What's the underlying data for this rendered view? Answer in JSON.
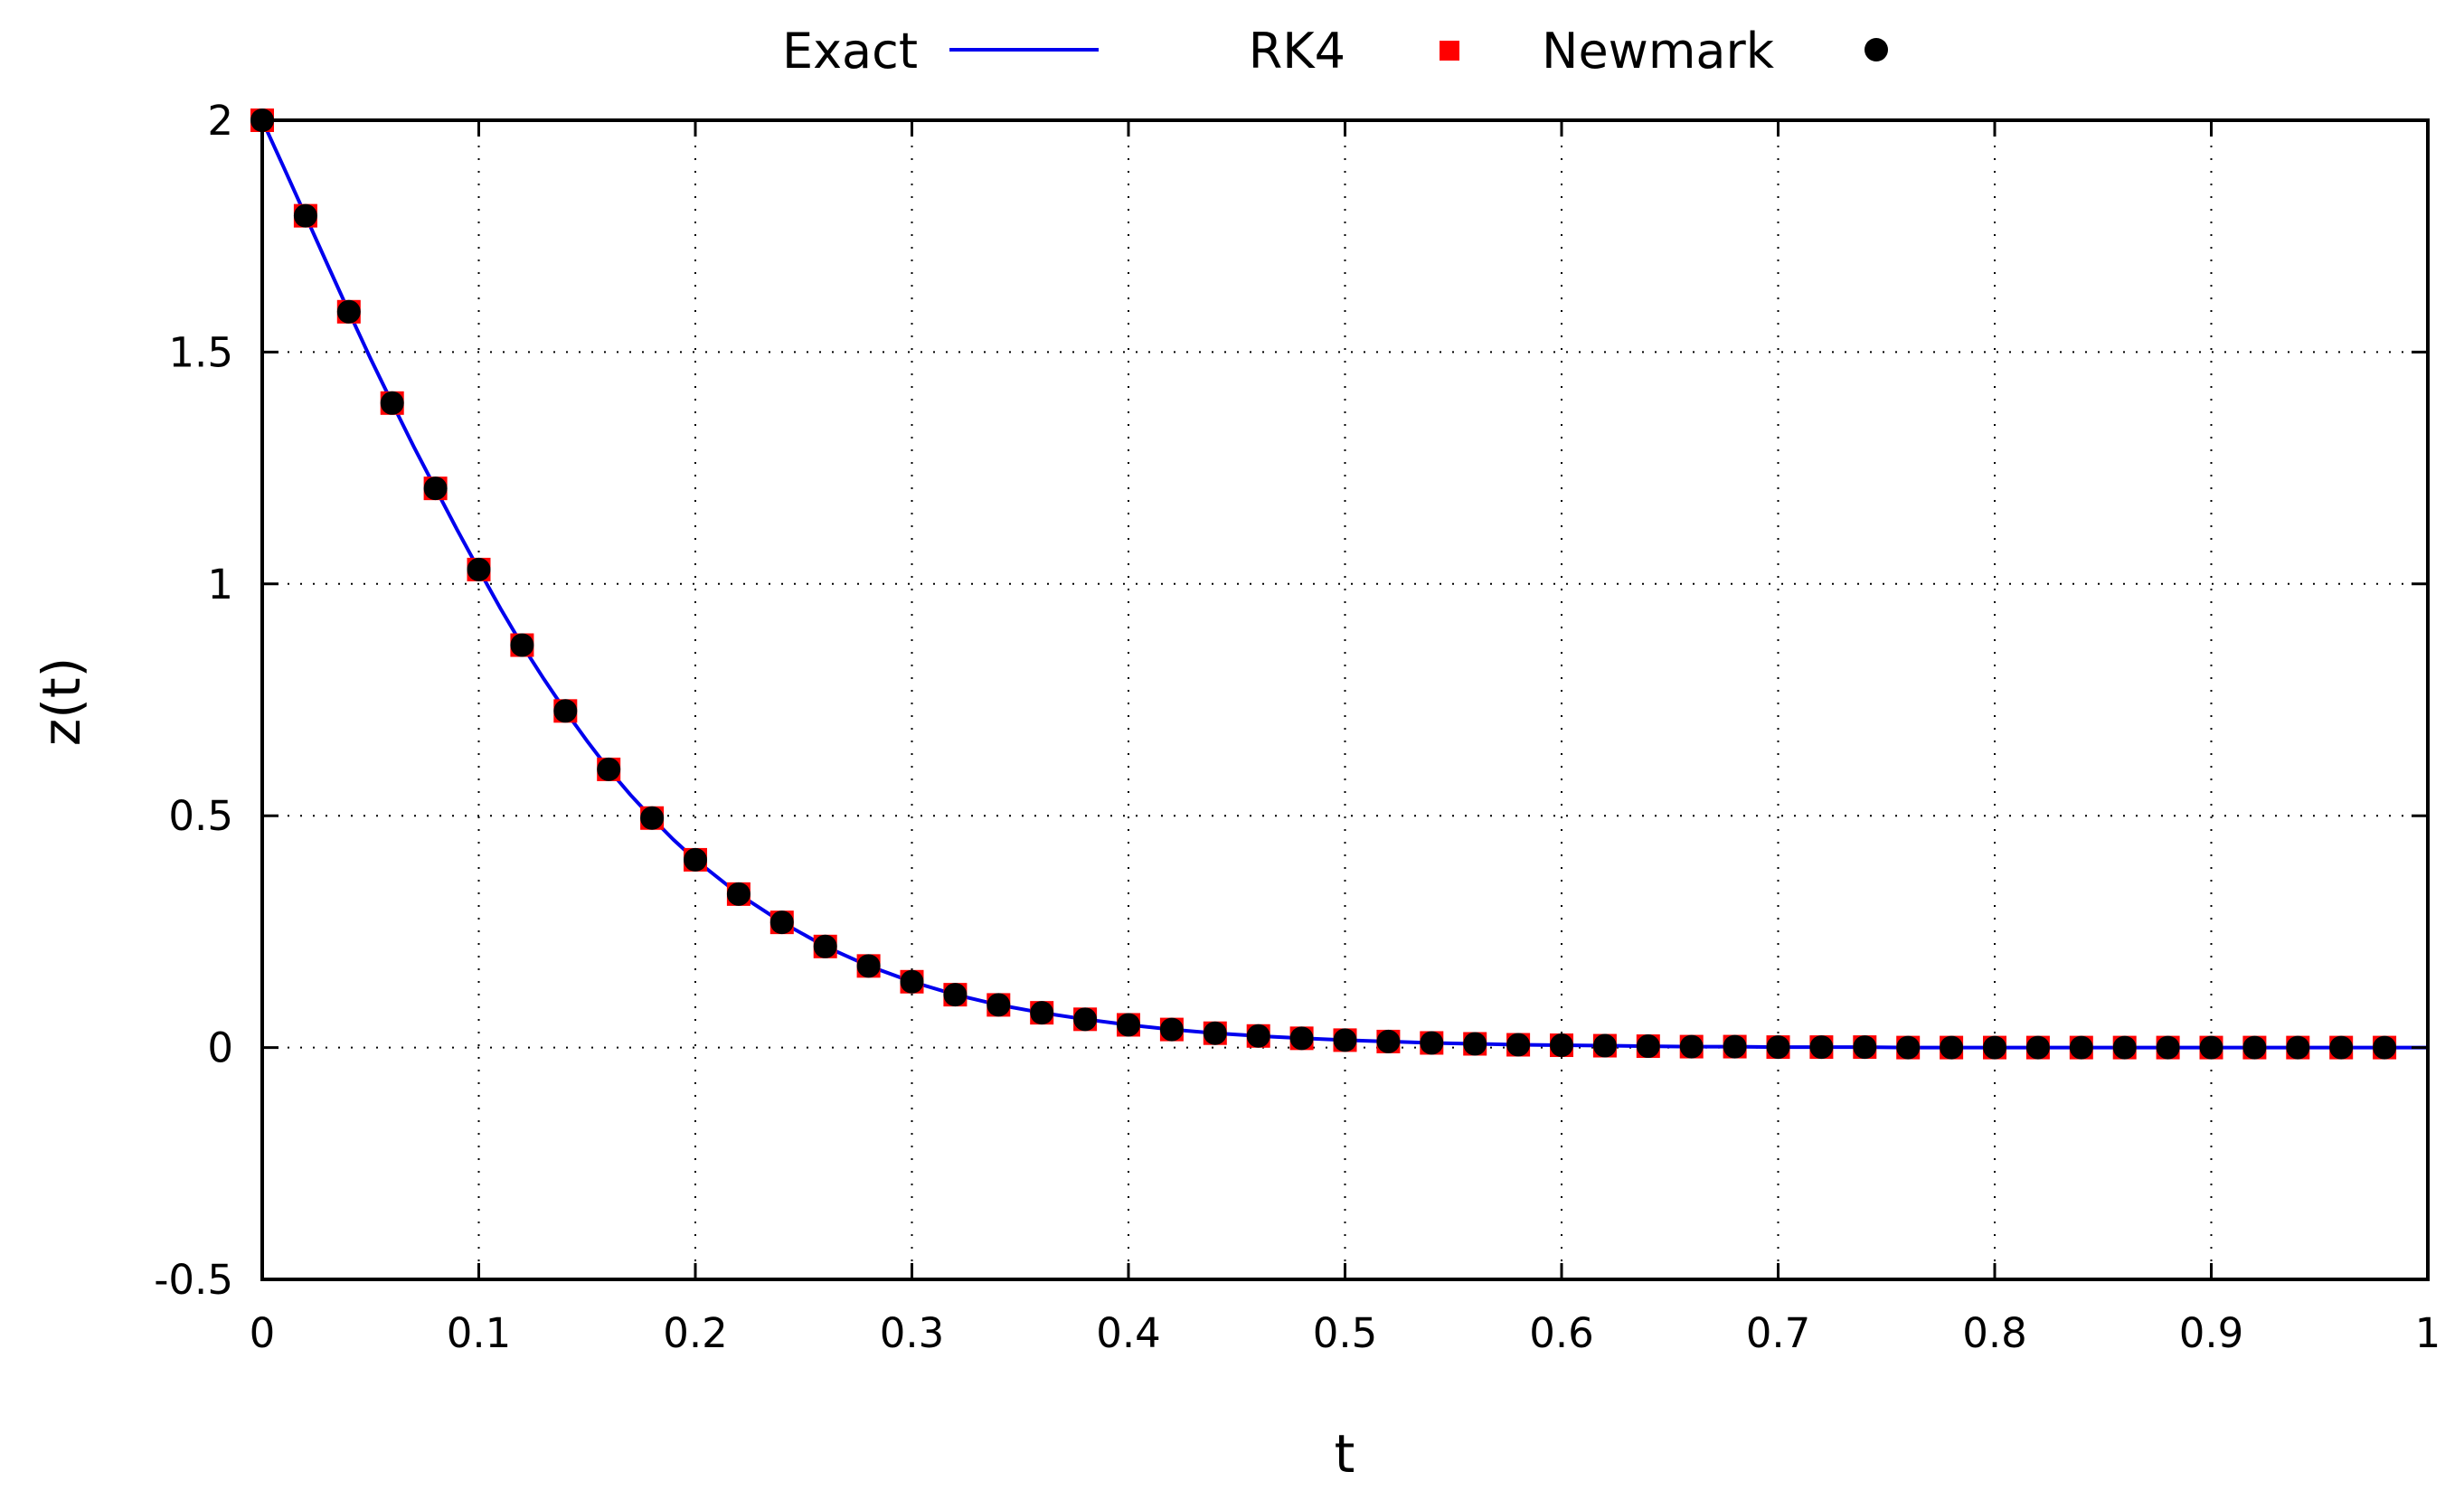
{
  "chart_data": {
    "type": "line",
    "title": "",
    "xlabel": "t",
    "ylabel": "z(t)",
    "xlim": [
      0,
      1
    ],
    "ylim": [
      -0.5,
      2
    ],
    "x_ticks": [
      "0",
      "0.1",
      "0.2",
      "0.3",
      "0.4",
      "0.5",
      "0.6",
      "0.7",
      "0.8",
      "0.9",
      "1"
    ],
    "y_ticks": [
      "-0.5",
      "0",
      "0.5",
      "1",
      "1.5",
      "2"
    ],
    "grid": true,
    "legend_position": "top",
    "x": [
      0,
      0.02,
      0.04,
      0.06,
      0.08,
      0.1,
      0.12,
      0.14,
      0.16,
      0.18,
      0.2,
      0.22,
      0.24,
      0.26,
      0.28,
      0.3,
      0.32,
      0.34,
      0.36,
      0.38,
      0.4,
      0.42,
      0.44,
      0.46,
      0.48,
      0.5,
      0.52,
      0.54,
      0.56,
      0.58,
      0.6,
      0.62,
      0.64,
      0.66,
      0.68,
      0.7,
      0.72,
      0.74,
      0.76,
      0.78,
      0.8,
      0.82,
      0.84,
      0.86,
      0.88,
      0.9,
      0.92,
      0.94,
      0.96,
      0.98
    ],
    "series": [
      {
        "name": "Exact",
        "style": "line",
        "color": "#0000ee",
        "x": [
          0,
          0.01,
          0.02,
          0.03,
          0.04,
          0.05,
          0.06,
          0.07,
          0.08,
          0.09,
          0.1,
          0.11,
          0.12,
          0.13,
          0.14,
          0.15,
          0.16,
          0.17,
          0.18,
          0.19,
          0.2,
          0.22,
          0.24,
          0.26,
          0.28,
          0.3,
          0.32,
          0.34,
          0.36,
          0.38,
          0.4,
          0.42,
          0.44,
          0.46,
          0.48,
          0.5,
          0.52,
          0.54,
          0.56,
          0.58,
          0.6,
          0.62,
          0.64,
          0.66,
          0.68,
          0.7,
          0.72,
          0.74,
          0.76,
          0.78,
          0.8,
          0.85,
          0.9,
          0.95,
          1.0
        ],
        "values": [
          2.0,
          1.898,
          1.794,
          1.69,
          1.587,
          1.486,
          1.39,
          1.296,
          1.206,
          1.117,
          1.031,
          0.947,
          0.868,
          0.795,
          0.726,
          0.661,
          0.6,
          0.545,
          0.495,
          0.448,
          0.405,
          0.331,
          0.27,
          0.218,
          0.176,
          0.142,
          0.114,
          0.092,
          0.075,
          0.061,
          0.049,
          0.039,
          0.031,
          0.025,
          0.02,
          0.016,
          0.013,
          0.01,
          0.008,
          0.006,
          0.005,
          0.004,
          0.003,
          0.002,
          0.002,
          0.001,
          0.001,
          0.001,
          0.0,
          0.0,
          0.0,
          0.0,
          0.0,
          0.0,
          0.0
        ]
      },
      {
        "name": "RK4",
        "style": "square",
        "color": "#ff0000",
        "values": [
          2.0,
          1.794,
          1.587,
          1.39,
          1.206,
          1.031,
          0.868,
          0.726,
          0.6,
          0.495,
          0.405,
          0.331,
          0.27,
          0.218,
          0.176,
          0.142,
          0.114,
          0.092,
          0.075,
          0.061,
          0.049,
          0.039,
          0.031,
          0.025,
          0.02,
          0.016,
          0.013,
          0.01,
          0.008,
          0.006,
          0.005,
          0.004,
          0.003,
          0.002,
          0.002,
          0.001,
          0.001,
          0.001,
          0.0,
          0.0,
          0.0,
          0.0,
          0.0,
          0.0,
          0.0,
          0.0,
          0.0,
          0.0,
          0.0,
          0.0
        ]
      },
      {
        "name": "Newmark",
        "style": "circle",
        "color": "#000000",
        "values": [
          2.0,
          1.794,
          1.587,
          1.39,
          1.206,
          1.031,
          0.868,
          0.726,
          0.6,
          0.495,
          0.405,
          0.331,
          0.27,
          0.218,
          0.176,
          0.142,
          0.114,
          0.092,
          0.075,
          0.061,
          0.049,
          0.039,
          0.031,
          0.025,
          0.02,
          0.016,
          0.013,
          0.01,
          0.008,
          0.006,
          0.005,
          0.004,
          0.003,
          0.002,
          0.002,
          0.001,
          0.001,
          0.001,
          0.0,
          0.0,
          0.0,
          0.0,
          0.0,
          0.0,
          0.0,
          0.0,
          0.0,
          0.0,
          0.0,
          0.0
        ]
      }
    ]
  }
}
